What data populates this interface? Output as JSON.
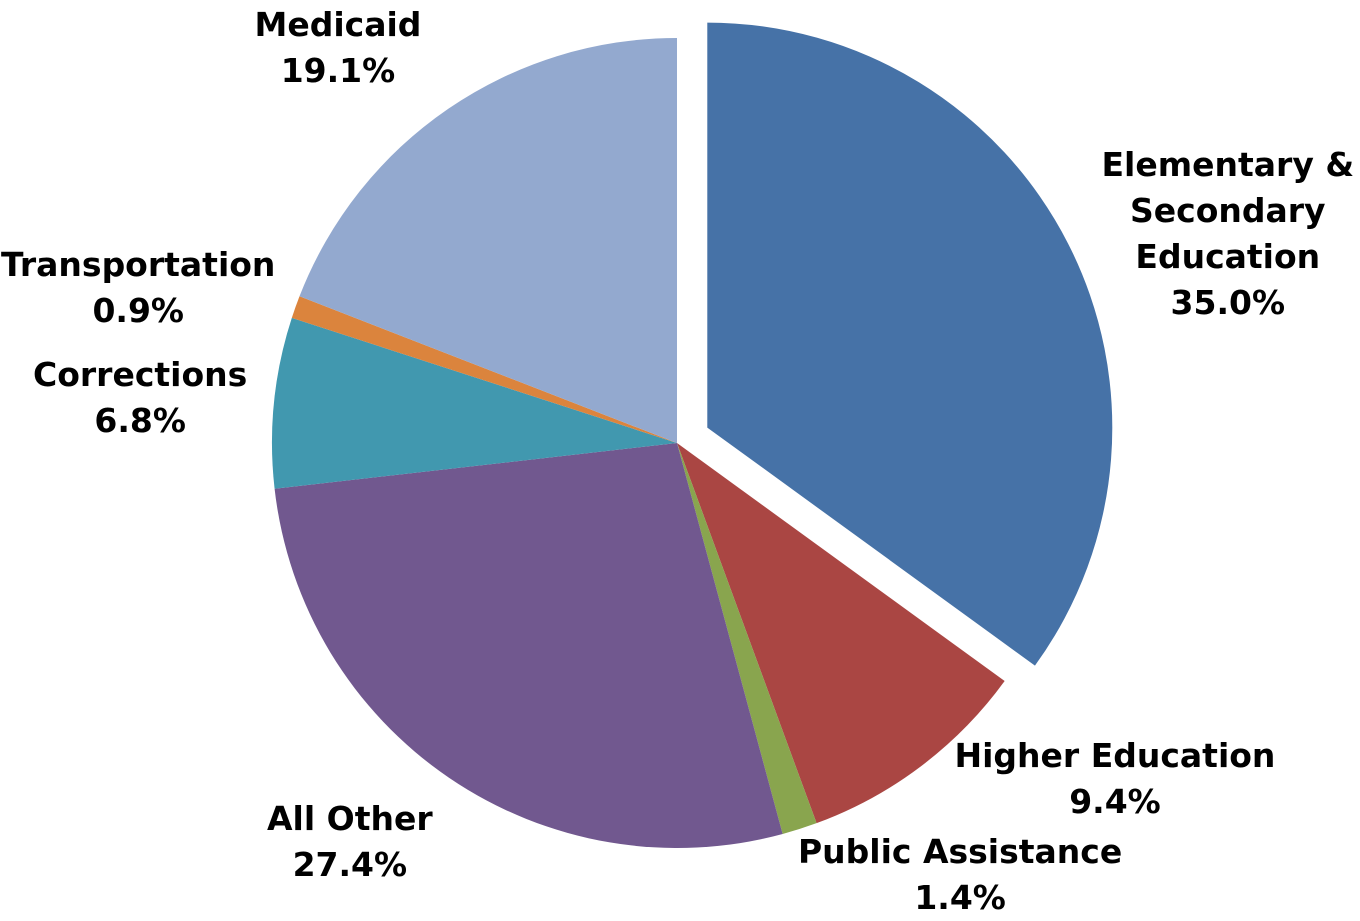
{
  "chart_data": {
    "type": "pie",
    "slices": [
      {
        "name": "Elementary & Secondary Education",
        "label_lines": [
          "Elementary &",
          "Secondary",
          "Education"
        ],
        "value": 35.0,
        "value_label": "35.0%",
        "color": "#4672A7",
        "exploded": true
      },
      {
        "name": "Higher Education",
        "label_lines": [
          "Higher Education"
        ],
        "value": 9.4,
        "value_label": "9.4%",
        "color": "#AA4643",
        "exploded": false
      },
      {
        "name": "Public Assistance",
        "label_lines": [
          "Public Assistance"
        ],
        "value": 1.4,
        "value_label": "1.4%",
        "color": "#89A54E",
        "exploded": false
      },
      {
        "name": "All Other",
        "label_lines": [
          "All Other"
        ],
        "value": 27.4,
        "value_label": "27.4%",
        "color": "#71588F",
        "exploded": false
      },
      {
        "name": "Corrections",
        "label_lines": [
          "Corrections"
        ],
        "value": 6.8,
        "value_label": "6.8%",
        "color": "#4198AF",
        "exploded": false
      },
      {
        "name": "Transportation",
        "label_lines": [
          "Transportation"
        ],
        "value": 0.9,
        "value_label": "0.9%",
        "color": "#DB843D",
        "exploded": false
      },
      {
        "name": "Medicaid",
        "label_lines": [
          "Medicaid"
        ],
        "value": 19.1,
        "value_label": "19.1%",
        "color": "#93A9CF",
        "exploded": false
      }
    ],
    "legend": "none"
  }
}
